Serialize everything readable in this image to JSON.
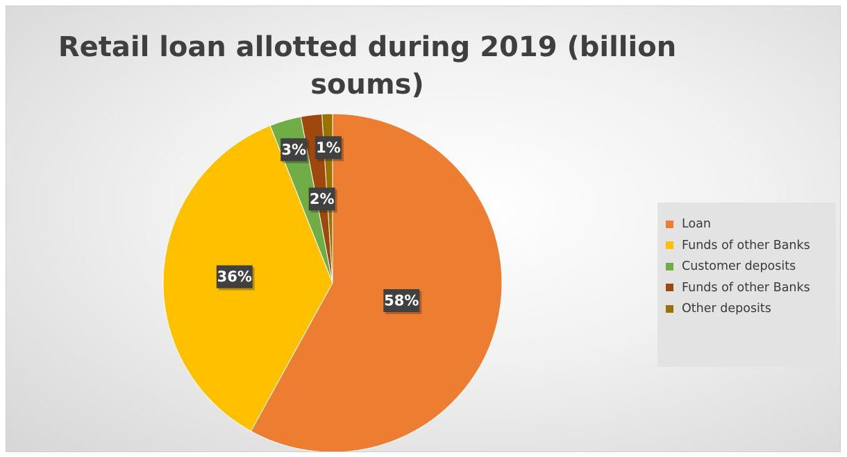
{
  "chart_data": {
    "type": "pie",
    "title": "Retail loan allotted during 2019 (billion soums)",
    "slices": [
      {
        "name": "Loan",
        "value": 58,
        "label": "58%",
        "color": "#ED7D31"
      },
      {
        "name": "Funds of other Banks",
        "value": 36,
        "label": "36%",
        "color": "#FFC000"
      },
      {
        "name": "Customer deposits",
        "value": 3,
        "label": "3%",
        "color": "#70AD47"
      },
      {
        "name": "Funds of other Banks",
        "value": 2,
        "label": "2%",
        "color": "#9E480E"
      },
      {
        "name": "Other deposits",
        "value": 1,
        "label": "1%",
        "color": "#997300"
      }
    ],
    "legend_position": "right"
  }
}
